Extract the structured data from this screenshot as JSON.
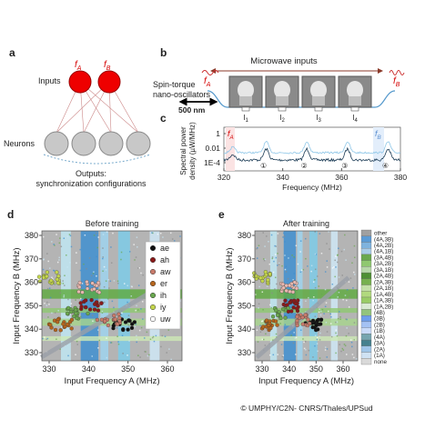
{
  "a": {
    "label": "a",
    "inputs": "Inputs",
    "f_a": [
      "f",
      "A"
    ],
    "f_b": [
      "f",
      "B"
    ],
    "neurons": "Neurons",
    "outputs": [
      "Outputs:",
      "synchronization configurations"
    ]
  },
  "b": {
    "label": "b",
    "title": "Microwave inputs",
    "oscillators": [
      "Spin-torque",
      "nano-oscillators"
    ],
    "scale": "500 nm",
    "f_a": [
      "f",
      "A"
    ],
    "f_b": [
      "f",
      "B"
    ],
    "currents": [
      [
        "I",
        "1"
      ],
      [
        "I",
        "2"
      ],
      [
        "I",
        "3"
      ],
      [
        "I",
        "4"
      ]
    ]
  },
  "c": {
    "label": "c",
    "ylabel": [
      "Spectral power",
      "density (µW/MHz)"
    ],
    "yticks": [
      "1",
      "0.01",
      "1E-4"
    ],
    "xticks": [
      320,
      340,
      360,
      380
    ],
    "xlabel": "Frequency (MHz)",
    "peaks": [
      "①",
      "②",
      "③",
      "④"
    ],
    "f_a": [
      "f",
      "A"
    ],
    "f_b": [
      "f",
      "B"
    ]
  },
  "d": {
    "label": "d",
    "title": "Before training",
    "ylabel": "Input Frequency B (MHz)",
    "xlabel": "Input Frequency A (MHz)",
    "yticks": [
      330,
      340,
      350,
      360,
      370,
      380
    ],
    "xticks": [
      330,
      340,
      350,
      360
    ],
    "legend": [
      "ae",
      "ah",
      "aw",
      "er",
      "ih",
      "iy",
      "uw"
    ]
  },
  "e": {
    "label": "e",
    "title": "After training",
    "ylabel": "Input Frequency B (MHz)",
    "xlabel": "Input Frequency A (MHz)",
    "yticks": [
      330,
      340,
      350,
      360,
      370,
      380
    ],
    "xticks": [
      330,
      340,
      350,
      360
    ],
    "legend": [
      "other",
      "(4A,3B)",
      "(4A,2B)",
      "(4A,1B)",
      "(3A,4B)",
      "(3A,2B)",
      "(3A,1B)",
      "(2A,4B)",
      "(2A,3B)",
      "(2A,1B)",
      "(1A,4B)",
      "(1A,3B)",
      "(1A,2B)",
      "(4B)",
      "(3B)",
      "(2B)",
      "(1B)",
      "(4A)",
      "(3A)",
      "(2A)",
      "(1A)",
      "none"
    ]
  },
  "credit": "© UMPHY/C2N- CNRS/Thales/UPSud"
}
